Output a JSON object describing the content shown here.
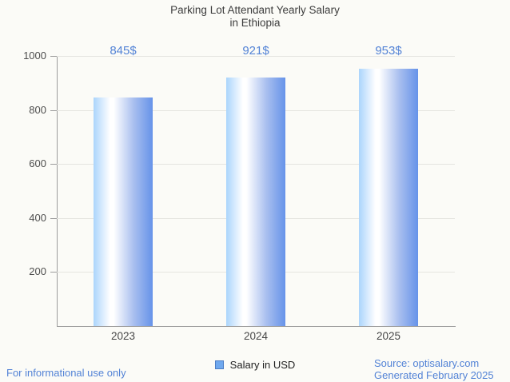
{
  "title": {
    "line1": "Parking Lot Attendant Yearly Salary",
    "line2": "in Ethiopia"
  },
  "chart_data": {
    "type": "bar",
    "title": "Parking Lot Attendant Yearly Salary in Ethiopia",
    "categories": [
      "2023",
      "2024",
      "2025"
    ],
    "series": [
      {
        "name": "Salary in USD",
        "values": [
          845,
          921,
          953
        ]
      }
    ],
    "value_labels": [
      "845$",
      "921$",
      "953$"
    ],
    "xlabel": "",
    "ylabel": "",
    "ylim": [
      0,
      1000
    ],
    "yticks": [
      200,
      400,
      600,
      800,
      1000
    ],
    "grid": true,
    "legend_position": "bottom"
  },
  "legend": {
    "label": "Salary in USD",
    "swatch_color": "#6fa8ee",
    "swatch_border": "#4c7dc4"
  },
  "footer": {
    "left": "For informational use only",
    "source": "Source: optisalary.com",
    "generated": "Generated February 2025"
  },
  "colors": {
    "background": "#fbfbf7",
    "title_text": "#3d3d3d",
    "axis_label_text": "#4d4d4d",
    "accent_blue_text": "#5383d6",
    "gridline": "#e5e5e0",
    "axis_line": "#9c9c9c",
    "bar_gradient": [
      "#abd5fc",
      "#ffffff",
      "#6693e9"
    ]
  }
}
